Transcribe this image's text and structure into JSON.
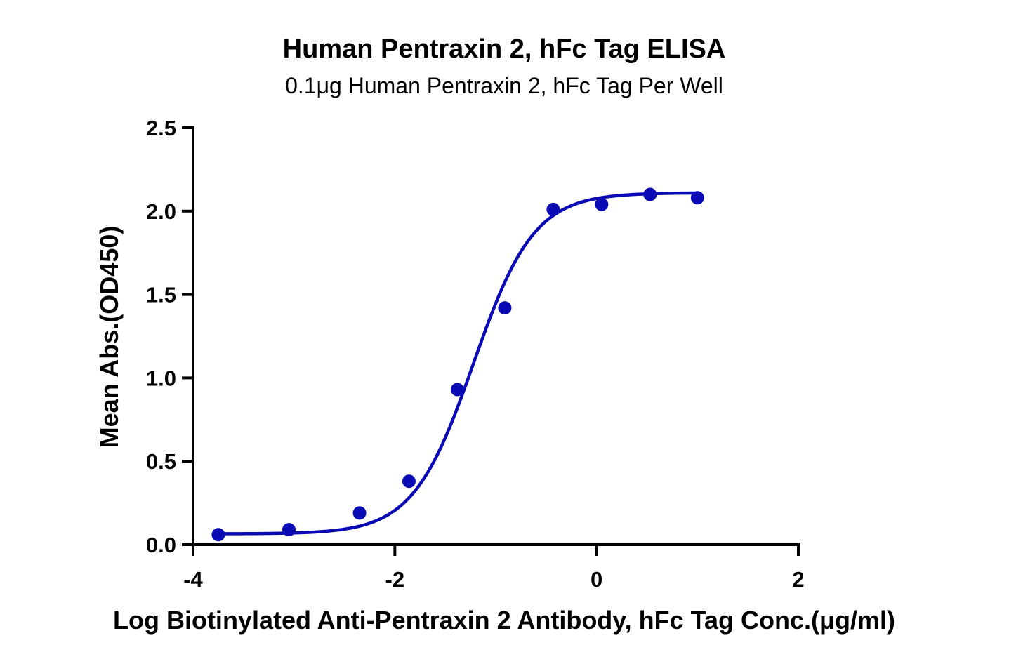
{
  "chart_data": {
    "type": "scatter",
    "title": "Human Pentraxin 2, hFc Tag ELISA",
    "subtitle": "0.1μg Human Pentraxin 2, hFc Tag Per Well",
    "xlabel": "Log Biotinylated Anti-Pentraxin 2 Antibody, hFc Tag Conc.(μg/ml)",
    "ylabel": "Mean Abs.(OD450)",
    "xlim": [
      -4,
      2
    ],
    "ylim": [
      0,
      2.5
    ],
    "xticks": [
      -4,
      -2,
      0,
      2
    ],
    "xtick_labels": [
      "-4",
      "-2",
      "0",
      "2"
    ],
    "yticks": [
      0,
      0.5,
      1.0,
      1.5,
      2.0,
      2.5
    ],
    "ytick_labels": [
      "0.0",
      "0.5",
      "1.0",
      "1.5",
      "2.0",
      "2.5"
    ],
    "grid": false,
    "color": "#0a0ab4",
    "series": [
      {
        "x": [
          -3.75,
          -3.05,
          -2.35,
          -1.86,
          -1.38,
          -0.91,
          -0.43,
          0.05,
          0.53,
          1.0
        ],
        "y": [
          0.06,
          0.09,
          0.19,
          0.38,
          0.93,
          1.42,
          2.01,
          2.04,
          2.1,
          2.08
        ]
      }
    ],
    "fit_curve": {
      "model": "4PL",
      "bottom": 0.065,
      "top": 2.11,
      "logEC50": -1.22,
      "hill": 1.45,
      "x_range": [
        -3.75,
        1.0
      ]
    }
  }
}
